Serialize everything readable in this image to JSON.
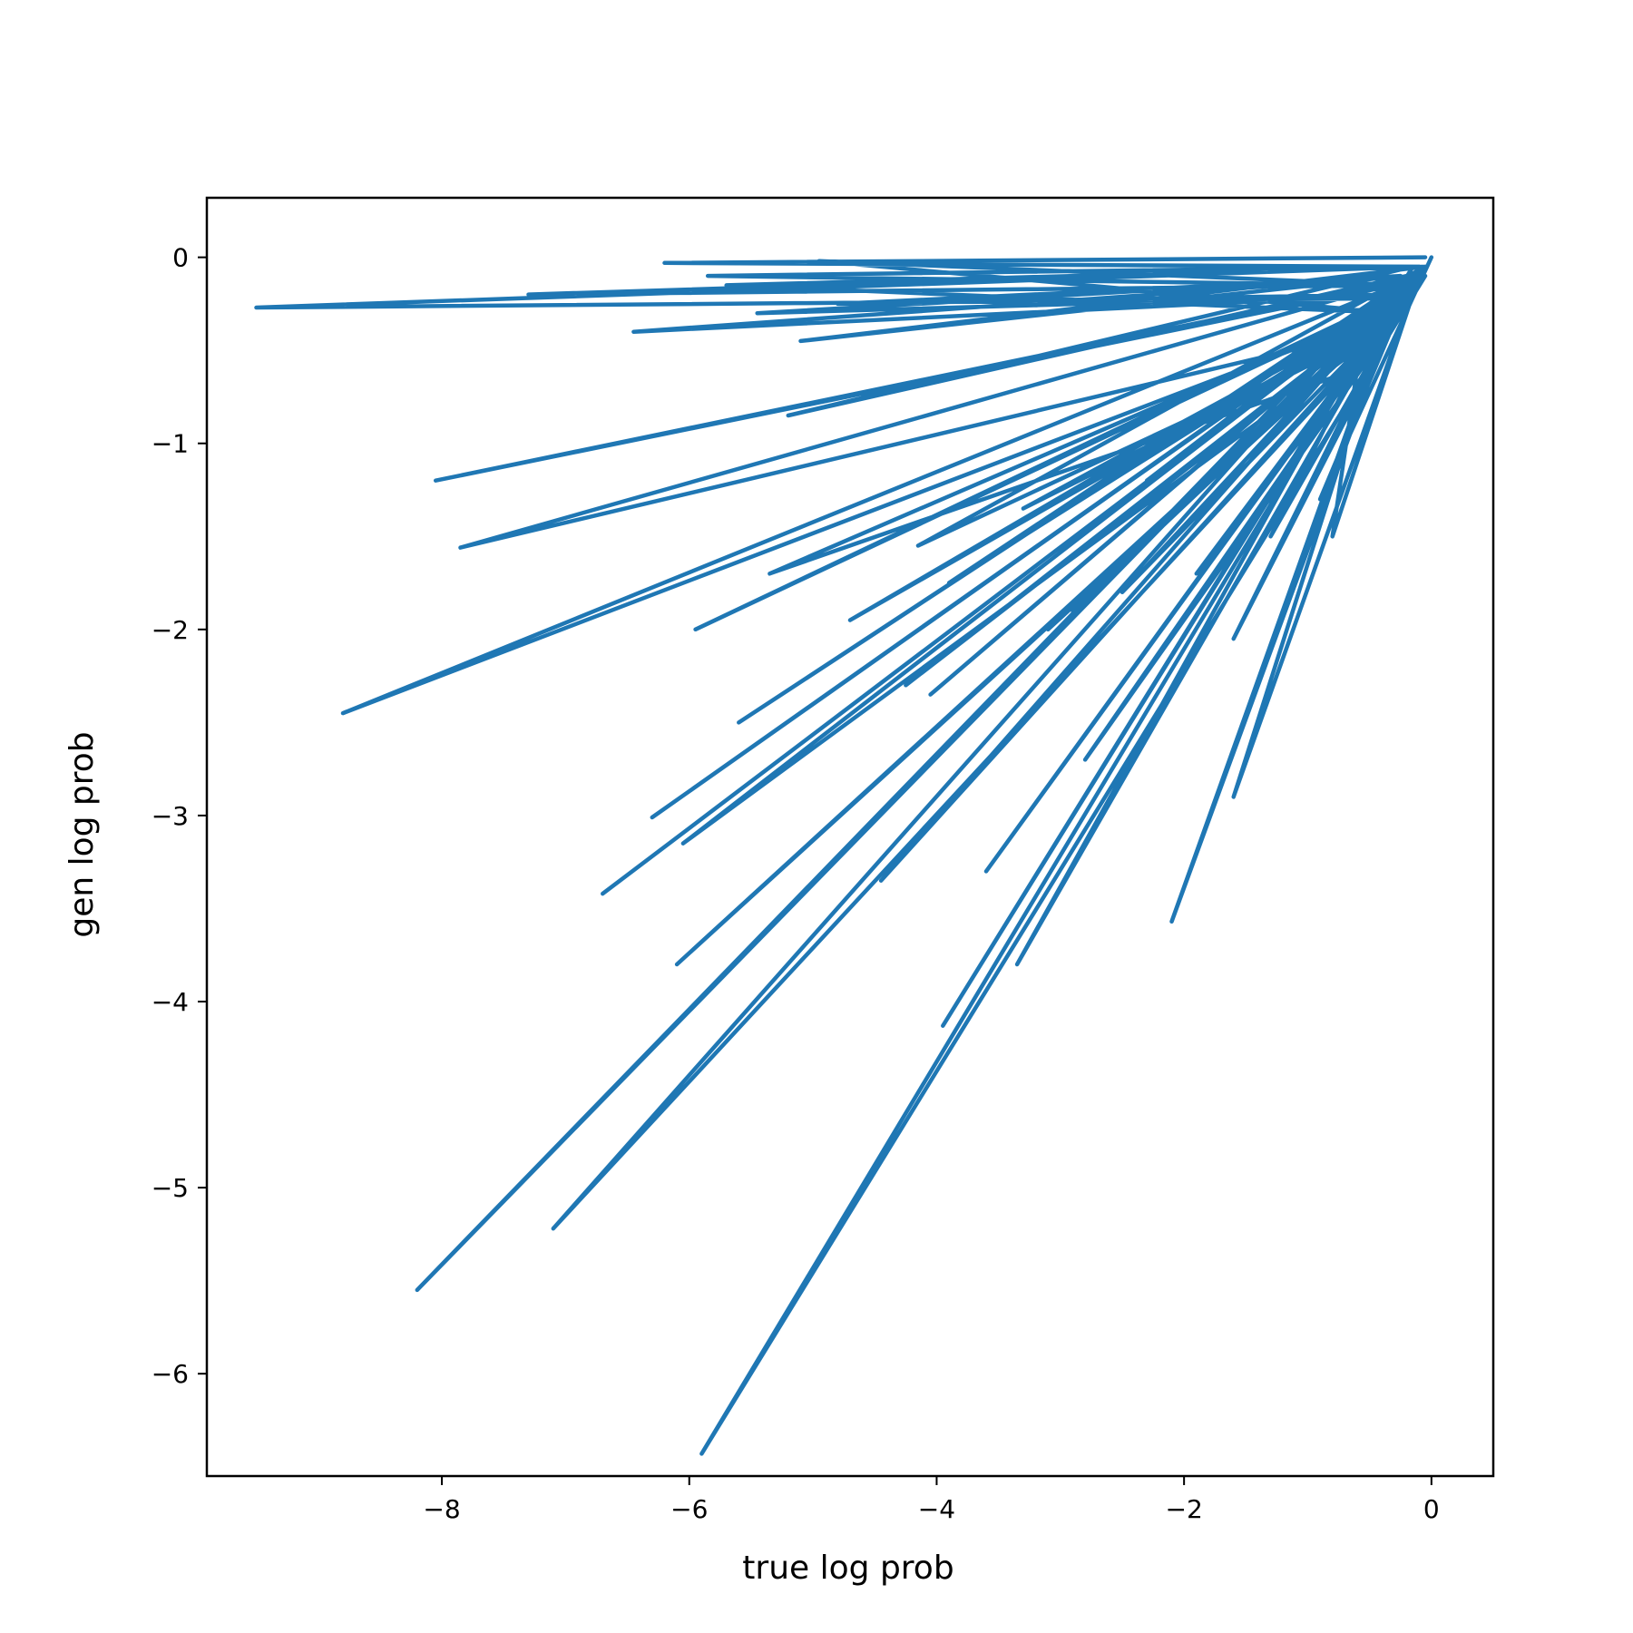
{
  "chart_data": {
    "type": "line",
    "xlabel": "true log prob",
    "ylabel": "gen log prob",
    "xlim": [
      -9.9,
      0.5
    ],
    "ylim": [
      -6.55,
      0.32
    ],
    "xticks": [
      {
        "value": -8,
        "label": "−8"
      },
      {
        "value": -6,
        "label": "−6"
      },
      {
        "value": -4,
        "label": "−4"
      },
      {
        "value": -2,
        "label": "−2"
      },
      {
        "value": 0,
        "label": "0"
      }
    ],
    "yticks": [
      {
        "value": 0,
        "label": "0"
      },
      {
        "value": -1,
        "label": "−1"
      },
      {
        "value": -2,
        "label": "−2"
      },
      {
        "value": -3,
        "label": "−3"
      },
      {
        "value": -4,
        "label": "−4"
      },
      {
        "value": -5,
        "label": "−5"
      },
      {
        "value": -6,
        "label": "−6"
      }
    ],
    "grid": false,
    "legend": "none",
    "line_color": "#1f77b4",
    "series": [
      {
        "x": [
          -0.05,
          -6.2,
          -0.1,
          -9.5,
          -0.3,
          -5.9,
          -0.05,
          -8.05,
          -0.3,
          -5.85,
          -0.1,
          -5.7,
          -0.25,
          -7.1,
          -0.4,
          -8.2,
          -0.2,
          -5.2,
          -0.15,
          -3.95,
          -0.3,
          -4.8,
          -0.1,
          -7.85,
          -0.5,
          -3.35,
          -0.2,
          -6.3,
          -0.4,
          -6.7,
          -0.1,
          -8.8,
          -0.35,
          -6.1,
          -0.15,
          -5.45,
          -0.25,
          -5.1,
          -0.05,
          -7.3,
          -0.2,
          -4.95,
          -0.3,
          -2.1,
          -0.45,
          -1.6,
          -0.1,
          -4.05,
          -0.35,
          -5.95,
          -0.25,
          -6.45,
          -0.15,
          -4.45,
          -0.5,
          -3.6,
          -0.05,
          -2.8,
          -0.3,
          -6.05,
          -0.2,
          -5.6,
          -0.1,
          -1.3,
          -0.4,
          -4.25,
          -0.15,
          -3.1,
          -0.3,
          -5.35,
          -0.6,
          -0.8,
          -0.1,
          -1.6,
          -0.3,
          -2.5,
          -0.05,
          -3.9,
          -0.2,
          -4.7,
          -0.35,
          -2.9,
          -0.1,
          -1.9,
          -0.25,
          -3.3,
          -0.45,
          -4.15,
          -0.05,
          -2.3,
          -0.15,
          -1.2,
          -0.3,
          -0.9,
          0.0
        ],
        "y": [
          0.0,
          -0.03,
          -0.05,
          -0.27,
          -0.22,
          -6.43,
          -0.1,
          -1.2,
          -0.15,
          -0.1,
          -0.05,
          -0.15,
          -0.3,
          -5.22,
          -0.2,
          -5.55,
          -0.1,
          -0.85,
          -0.05,
          -4.13,
          -0.2,
          -0.25,
          -0.1,
          -1.56,
          -0.4,
          -3.8,
          -0.15,
          -3.01,
          -0.25,
          -3.42,
          -0.1,
          -2.45,
          -0.3,
          -3.8,
          -0.2,
          -0.3,
          -0.1,
          -0.45,
          -0.05,
          -0.2,
          -0.15,
          -0.02,
          -0.3,
          -3.57,
          -0.5,
          -2.9,
          -0.1,
          -2.35,
          -0.25,
          -2.0,
          -0.2,
          -0.4,
          -0.1,
          -3.35,
          -0.45,
          -3.3,
          -0.05,
          -2.7,
          -0.35,
          -3.15,
          -0.15,
          -2.5,
          -0.1,
          -1.5,
          -0.3,
          -2.3,
          -0.2,
          -2.0,
          -0.25,
          -1.7,
          -0.6,
          -1.5,
          -0.1,
          -2.05,
          -0.3,
          -1.8,
          -0.05,
          -1.75,
          -0.2,
          -1.95,
          -0.3,
          -1.9,
          -0.1,
          -1.7,
          -0.25,
          -1.35,
          -0.4,
          -1.55,
          -0.05,
          -1.2,
          -0.15,
          -1.1,
          -0.35,
          -1.3,
          0.0
        ]
      }
    ]
  }
}
